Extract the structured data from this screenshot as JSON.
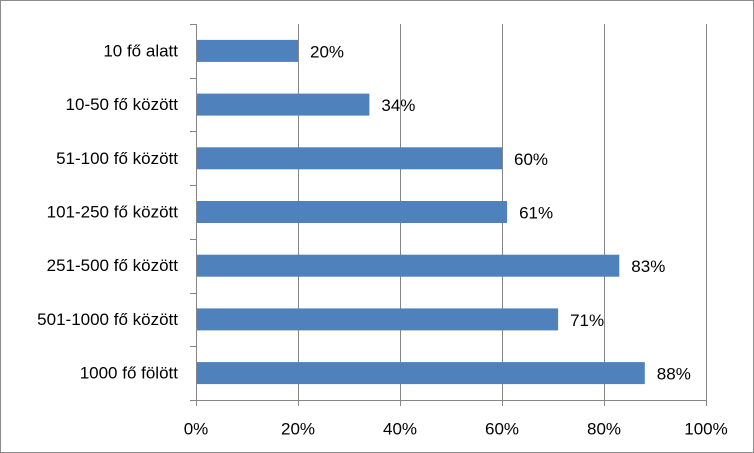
{
  "chart_data": {
    "type": "bar",
    "orientation": "horizontal",
    "categories": [
      "10 fő alatt",
      "10-50 fő között",
      "51-100 fő között",
      "101-250 fő között",
      "251-500 fő között",
      "501-1000 fő között",
      "1000 fő fölött"
    ],
    "values": [
      20,
      34,
      60,
      61,
      83,
      71,
      88
    ],
    "value_labels": [
      "20%",
      "34%",
      "60%",
      "61%",
      "83%",
      "71%",
      "88%"
    ],
    "xlim": [
      0,
      100
    ],
    "xticks": [
      0,
      20,
      40,
      60,
      80,
      100
    ],
    "xtick_labels": [
      "0%",
      "20%",
      "40%",
      "60%",
      "80%",
      "100%"
    ],
    "grid": true,
    "legend": "none",
    "title": "",
    "xlabel": "",
    "ylabel": "",
    "bar_color": "#4f81bd",
    "grid_color": "#868686"
  }
}
